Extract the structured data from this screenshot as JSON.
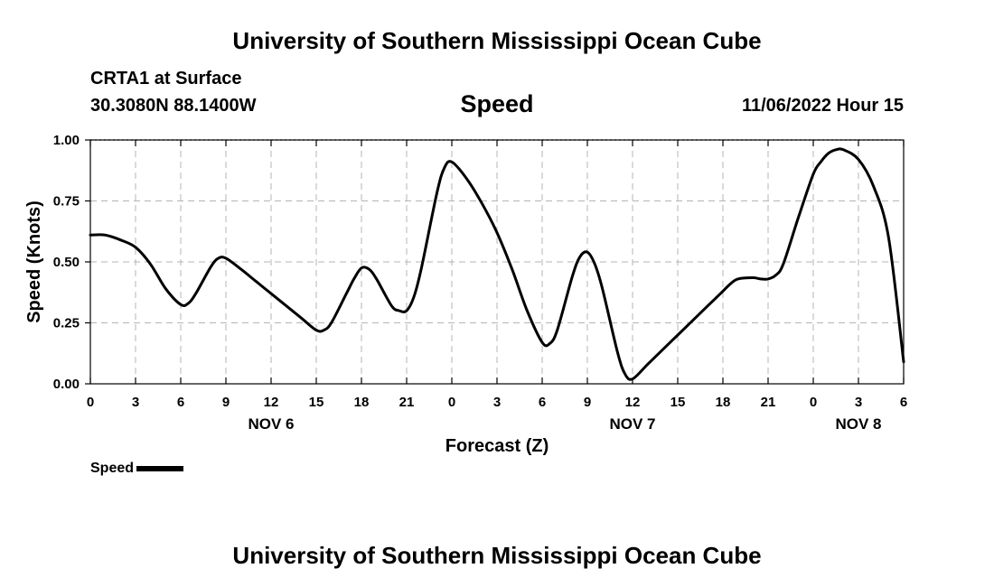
{
  "header": {
    "title": "University of Southern Mississippi Ocean Cube",
    "station": "CRTA1 at Surface",
    "coords": "30.3080N  88.1400W",
    "datetime": "11/06/2022 Hour 15",
    "footer_title": "University of Southern Mississippi Ocean Cube"
  },
  "chart_data": {
    "type": "line",
    "title": "Speed",
    "xlabel": "Forecast (Z)",
    "ylabel": "Speed (Knots)",
    "xlim": [
      0,
      54
    ],
    "ylim": [
      0,
      1
    ],
    "grid": true,
    "line_color": "#000000",
    "legend": {
      "label": "Speed",
      "placement": "bottom-left"
    },
    "x_ticks": [
      {
        "x": 0,
        "label": "0"
      },
      {
        "x": 3,
        "label": "3"
      },
      {
        "x": 6,
        "label": "6"
      },
      {
        "x": 9,
        "label": "9"
      },
      {
        "x": 12,
        "label": "12"
      },
      {
        "x": 15,
        "label": "15"
      },
      {
        "x": 18,
        "label": "18"
      },
      {
        "x": 21,
        "label": "21"
      },
      {
        "x": 24,
        "label": "0"
      },
      {
        "x": 27,
        "label": "3"
      },
      {
        "x": 30,
        "label": "6"
      },
      {
        "x": 33,
        "label": "9"
      },
      {
        "x": 36,
        "label": "12"
      },
      {
        "x": 39,
        "label": "15"
      },
      {
        "x": 42,
        "label": "18"
      },
      {
        "x": 45,
        "label": "21"
      },
      {
        "x": 48,
        "label": "0"
      },
      {
        "x": 51,
        "label": "3"
      },
      {
        "x": 54,
        "label": "6"
      }
    ],
    "date_labels": [
      {
        "x": 12,
        "label": "NOV 6"
      },
      {
        "x": 36,
        "label": "NOV 7"
      },
      {
        "x": 51,
        "label": "NOV 8"
      }
    ],
    "y_ticks": [
      {
        "y": 0,
        "label": "0.00"
      },
      {
        "y": 0.25,
        "label": "0.25"
      },
      {
        "y": 0.5,
        "label": "0.50"
      },
      {
        "y": 0.75,
        "label": "0.75"
      },
      {
        "y": 1.0,
        "label": "1.00"
      }
    ],
    "series": [
      {
        "x": [
          0,
          1,
          2,
          3,
          4,
          5,
          6,
          6.5,
          7,
          8,
          8.5,
          9,
          10,
          11,
          12,
          13,
          14,
          15,
          15.5,
          16,
          17,
          17.5,
          18,
          18.5,
          19,
          20,
          20.5,
          21,
          21.5,
          22,
          23,
          23.5,
          24,
          25,
          26,
          27,
          28,
          29,
          30,
          30.5,
          31,
          32,
          32.5,
          33,
          33.5,
          34,
          35,
          35.5,
          36,
          37,
          38,
          39,
          40,
          41,
          42,
          42.5,
          43,
          44,
          44.5,
          45,
          45.5,
          46,
          47,
          48,
          48.5,
          49,
          49.5,
          50,
          51,
          52,
          53,
          54
        ],
        "y": [
          0.61,
          0.61,
          0.59,
          0.56,
          0.49,
          0.39,
          0.325,
          0.33,
          0.37,
          0.48,
          0.515,
          0.515,
          0.47,
          0.42,
          0.37,
          0.32,
          0.27,
          0.22,
          0.22,
          0.25,
          0.37,
          0.43,
          0.475,
          0.47,
          0.43,
          0.32,
          0.3,
          0.3,
          0.36,
          0.48,
          0.78,
          0.885,
          0.91,
          0.84,
          0.74,
          0.62,
          0.47,
          0.3,
          0.17,
          0.165,
          0.22,
          0.44,
          0.52,
          0.54,
          0.49,
          0.39,
          0.13,
          0.04,
          0.02,
          0.08,
          0.14,
          0.2,
          0.26,
          0.32,
          0.38,
          0.41,
          0.43,
          0.435,
          0.43,
          0.43,
          0.445,
          0.49,
          0.68,
          0.86,
          0.91,
          0.945,
          0.96,
          0.96,
          0.92,
          0.81,
          0.6,
          0.09
        ]
      }
    ]
  }
}
